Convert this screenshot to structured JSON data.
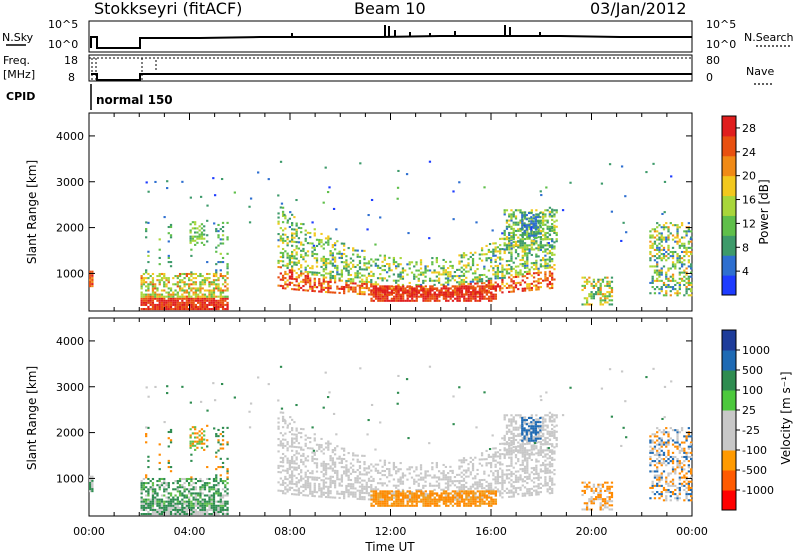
{
  "header": {
    "station": "Stokkseyri (fitACF)",
    "beam": "Beam 10",
    "date": "03/Jan/2012"
  },
  "status_panels": {
    "nsky_label": "N.Sky",
    "nsearch_label": "N.Search",
    "freq_label_1": "Freq.",
    "freq_label_2": "[MHz]",
    "nave_label": "Nave",
    "cpid_label": "CPID",
    "cpid_value": "normal 150",
    "noise_ticks": [
      "10^5",
      "10^0"
    ],
    "freq_ticks": [
      "18",
      "8"
    ],
    "nave_ticks": [
      "80",
      "0"
    ]
  },
  "colors": {
    "power_scale": [
      "#1e3cff",
      "#2e6fd0",
      "#3d9a6a",
      "#5fbf4a",
      "#a8d63a",
      "#f2c81e",
      "#f08a16",
      "#e85010",
      "#e01e1e"
    ],
    "velocity_scale": [
      "#ff0000",
      "#ff5a00",
      "#ff9a00",
      "#c8c8c8",
      "#c8c8c8",
      "#4cc83c",
      "#2e8c50",
      "#1e6ab4",
      "#1e3c9a"
    ],
    "velocity_gray": "#c8c8c8"
  },
  "x_axis": {
    "title": "Time UT",
    "ticks": [
      "00:00",
      "04:00",
      "08:00",
      "12:00",
      "16:00",
      "20:00",
      "00:00"
    ]
  },
  "chart_data": [
    {
      "type": "heatmap",
      "name": "power",
      "ylabel": "Slant Range [km]",
      "ylim": [
        180,
        4500
      ],
      "xlim_hours": [
        0,
        24
      ],
      "yticks": [
        "1000",
        "2000",
        "3000",
        "4000"
      ],
      "colorbar": {
        "label": "Power [dB]",
        "ticks": [
          "4",
          "8",
          "12",
          "16",
          "20",
          "24",
          "28"
        ],
        "range": [
          0,
          30
        ]
      }
    },
    {
      "type": "heatmap",
      "name": "velocity",
      "ylabel": "Slant Range [km]",
      "ylim": [
        180,
        4500
      ],
      "xlim_hours": [
        0,
        24
      ],
      "yticks": [
        "1000",
        "2000",
        "3000",
        "4000"
      ],
      "colorbar": {
        "label": "Velocity [m s⁻¹]",
        "ticks": [
          "1000",
          "500",
          "100",
          "25",
          "-25",
          "-100",
          "-500",
          "-1000"
        ]
      }
    }
  ]
}
